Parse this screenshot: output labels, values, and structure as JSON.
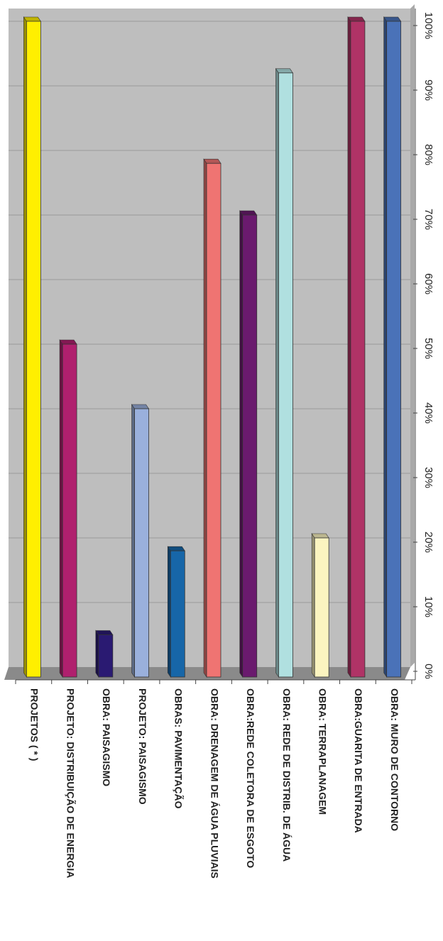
{
  "chart_data": {
    "type": "bar",
    "orientation": "rotated-90-clockwise",
    "categories": [
      "PROJETOS ( * )",
      "PROJETO: DISTRIBUIÇÃO DE ENERGIA",
      "OBRA: PAISAGISMO",
      "PROJETO: PAISAGISMO",
      "OBRAS: PAVIMENTAÇÃO",
      "OBRA: DRENAGEM DE ÁGUA PLUVIAIS",
      "OBRA:REDE COLETORA DE ESGOTO",
      "OBRA: REDE DE DISTRIB. DE ÁGUA",
      "OBRA: TERRAPLANAGEM",
      "OBRA:GUARITA DE ENTRADA",
      "OBRA: MURO DE CONTORNO"
    ],
    "values": [
      100,
      50,
      5,
      40,
      18,
      78,
      70,
      92,
      20,
      100,
      100
    ],
    "colors": [
      "#ffef00",
      "#b0206e",
      "#2a1a72",
      "#9ab0dc",
      "#1766a8",
      "#ef7472",
      "#6a1a6e",
      "#b0e0e0",
      "#fbf4c0",
      "#b03366",
      "#4a72b8"
    ],
    "ylim": [
      0,
      100
    ],
    "yticks": [
      "0%",
      "10%",
      "20%",
      "30%",
      "40%",
      "50%",
      "60%",
      "70%",
      "80%",
      "90%",
      "100%"
    ],
    "grid": true,
    "plot_background": "#bebebe",
    "floor_color": "#8a8a8a"
  }
}
